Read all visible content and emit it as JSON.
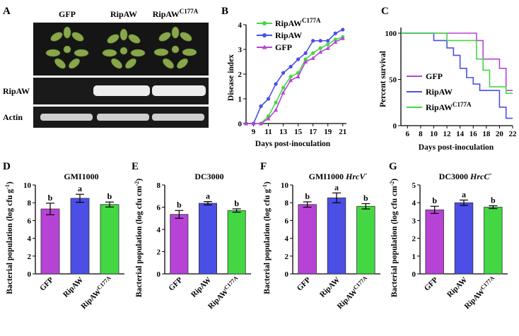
{
  "panel_labels": {
    "A": "A",
    "B": "B",
    "C": "C",
    "D": "D",
    "E": "E",
    "F": "F",
    "G": "G"
  },
  "panelA": {
    "columns": [
      "GFP",
      "RipAW",
      "RipAW",
      "C177A"
    ],
    "rows": [
      "RipAW",
      "Actin"
    ],
    "colors": {
      "gel_bg": "#1a1a1a",
      "band": "#f2f2f2",
      "plant": "#7f9a3c"
    }
  },
  "colors": {
    "gfp": "#b643d6",
    "ripaw": "#4b4fe6",
    "mut": "#43d843"
  },
  "chart_data": [
    {
      "id": "B",
      "type": "line",
      "xlabel": "Days post-inoculation",
      "ylabel": "Disease index",
      "xlim": [
        8,
        21.5
      ],
      "ylim": [
        0,
        4
      ],
      "xticks": [
        "9",
        "11",
        "13",
        "15",
        "17",
        "19",
        "21"
      ],
      "yticks": [
        "0",
        "1",
        "2",
        "3",
        "4"
      ],
      "x": [
        8,
        9,
        10,
        11,
        12,
        13,
        14,
        15,
        16,
        17,
        18,
        19,
        20,
        21
      ],
      "legend": [
        "RipAW",
        "C177A",
        "RipAW",
        "GFP"
      ],
      "legend_position": "top-left",
      "series": [
        {
          "name": "RipAW",
          "key": "mut",
          "values": [
            0,
            0,
            0,
            0.3,
            0.85,
            1.45,
            1.9,
            2.05,
            2.6,
            2.85,
            3.05,
            3.2,
            3.4,
            3.5
          ]
        },
        {
          "name": "RipAW",
          "key": "ripaw",
          "values": [
            0,
            0,
            0.7,
            1.0,
            1.6,
            2.05,
            2.3,
            2.6,
            2.85,
            3.35,
            3.35,
            3.35,
            3.65,
            3.8
          ]
        },
        {
          "name": "GFP",
          "key": "gfp",
          "values": [
            0,
            0,
            0,
            0.2,
            0.55,
            1.25,
            1.75,
            1.9,
            2.5,
            2.65,
            2.9,
            3.05,
            3.3,
            3.45
          ]
        }
      ]
    },
    {
      "id": "C",
      "type": "line",
      "xlabel": "Days post-inoculation",
      "ylabel": "Percent survival",
      "xlim": [
        5,
        22
      ],
      "ylim": [
        0,
        100
      ],
      "xticks": [
        "6",
        "8",
        "10",
        "12",
        "14",
        "16",
        "18",
        "20",
        "22"
      ],
      "yticks": [
        "0",
        "50",
        "100"
      ],
      "legend": [
        "GFP",
        "RipAW",
        "RipAW",
        "C177A"
      ],
      "legend_position": "lower-left",
      "series": [
        {
          "name": "GFP",
          "key": "gfp",
          "steps": [
            [
              5,
              100
            ],
            [
              16.5,
              100
            ],
            [
              16.5,
              92
            ],
            [
              17.5,
              92
            ],
            [
              17.5,
              72
            ],
            [
              20,
              72
            ],
            [
              20,
              62
            ],
            [
              21,
              62
            ],
            [
              21,
              38
            ],
            [
              22,
              38
            ]
          ]
        },
        {
          "name": "RipAW",
          "key": "ripaw",
          "steps": [
            [
              5,
              100
            ],
            [
              10,
              100
            ],
            [
              10,
              92
            ],
            [
              12,
              92
            ],
            [
              12,
              84
            ],
            [
              13,
              84
            ],
            [
              13,
              76
            ],
            [
              14,
              76
            ],
            [
              14,
              62
            ],
            [
              15,
              62
            ],
            [
              15,
              52
            ],
            [
              16,
              52
            ],
            [
              16,
              45
            ],
            [
              17,
              45
            ],
            [
              17,
              38
            ],
            [
              20,
              38
            ],
            [
              20,
              20
            ],
            [
              21,
              20
            ],
            [
              21,
              8
            ],
            [
              22,
              8
            ]
          ]
        },
        {
          "name": "RipAW C177A",
          "key": "mut",
          "steps": [
            [
              5,
              100
            ],
            [
              12,
              100
            ],
            [
              12,
              92
            ],
            [
              16.5,
              92
            ],
            [
              16.5,
              72
            ],
            [
              17.5,
              72
            ],
            [
              17.5,
              60
            ],
            [
              18.5,
              60
            ],
            [
              18.5,
              42
            ],
            [
              21,
              42
            ],
            [
              21,
              35
            ],
            [
              22,
              35
            ]
          ]
        }
      ]
    },
    {
      "id": "D",
      "type": "bar",
      "title": "GMI1000",
      "ylabel": "Bacterial population (log cfu g",
      "ylabel_sup": "-1",
      "ylim": [
        0,
        10
      ],
      "yticks": [
        "0",
        "2",
        "4",
        "6",
        "8",
        "10"
      ],
      "categories": [
        "GFP",
        "RipAW",
        "RipAW"
      ],
      "category_sup": [
        "",
        "",
        "C177A"
      ],
      "values": [
        7.3,
        8.5,
        7.8
      ],
      "errors": [
        0.65,
        0.45,
        0.28
      ],
      "letters": [
        "b",
        "a",
        "b"
      ]
    },
    {
      "id": "E",
      "type": "bar",
      "title": "DC3000",
      "ylabel": "Bacterial population (log cfu cm",
      "ylabel_sup": "-2",
      "ylim": [
        0,
        8
      ],
      "yticks": [
        "0",
        "2",
        "4",
        "6",
        "8"
      ],
      "categories": [
        "GFP",
        "RipAW",
        "RipAW"
      ],
      "category_sup": [
        "",
        "",
        "C177A"
      ],
      "values": [
        5.35,
        6.35,
        5.7
      ],
      "errors": [
        0.35,
        0.15,
        0.15
      ],
      "letters": [
        "b",
        "a",
        "b"
      ]
    },
    {
      "id": "F",
      "type": "bar",
      "title": "GMI1000 ",
      "title_italic": "HrcV",
      "title_sup": "-",
      "ylabel": "Bacterial population (log cfu g",
      "ylabel_sup": "-1",
      "ylim": [
        0,
        10
      ],
      "yticks": [
        "0",
        "2",
        "4",
        "6",
        "8",
        "10"
      ],
      "categories": [
        "GFP",
        "RipAW",
        "RipAW"
      ],
      "category_sup": [
        "",
        "",
        "C177A"
      ],
      "values": [
        7.8,
        8.55,
        7.6
      ],
      "errors": [
        0.3,
        0.55,
        0.3
      ],
      "letters": [
        "b",
        "a",
        "b"
      ]
    },
    {
      "id": "G",
      "type": "bar",
      "title": "DC3000 ",
      "title_italic": "HrcC",
      "title_sup": "-",
      "ylabel": "Bacterial population (log cfu cm",
      "ylabel_sup": "-2",
      "ylim": [
        0,
        5
      ],
      "yticks": [
        "0",
        "1",
        "2",
        "3",
        "4",
        "5"
      ],
      "categories": [
        "GFP",
        "RipAW",
        "RipAW"
      ],
      "category_sup": [
        "",
        "",
        "C177A"
      ],
      "values": [
        3.6,
        4.0,
        3.75
      ],
      "errors": [
        0.2,
        0.15,
        0.08
      ],
      "letters": [
        "b",
        "a",
        "b"
      ]
    }
  ]
}
